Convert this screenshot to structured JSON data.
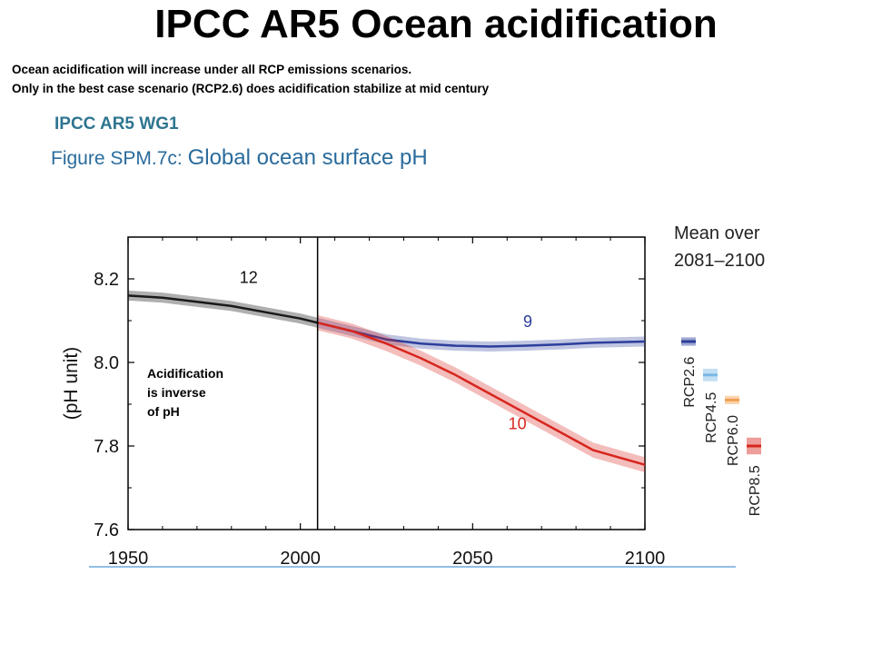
{
  "slide": {
    "title": "IPCC AR5 Ocean acidification",
    "subtitle_lines": [
      "Ocean acidification will increase under all RCP emissions scenarios.",
      "Only in the best case scenario (RCP2.6) does acidification stabilize at mid century"
    ],
    "source_label": "IPCC AR5 WG1",
    "figure_caption_prefix": "Figure SPM.7c: ",
    "figure_caption_title": "Global ocean surface pH"
  },
  "annotation_lines": [
    "Acidification",
    "is inverse",
    "of pH"
  ],
  "colors": {
    "historical": "#1a1a1a",
    "rcp26": "#2c3e9c",
    "rcp45": "#7ab8e6",
    "rcp60": "#f0a050",
    "rcp85": "#d7261e",
    "frame": "#000000",
    "baseline": "#6fa8dc"
  },
  "chart_data": {
    "type": "line",
    "title": "Global ocean surface pH",
    "xlabel": "",
    "ylabel": "(pH unit)",
    "xlim": [
      1950,
      2100
    ],
    "ylim": [
      7.6,
      8.3
    ],
    "xticks": [
      1950,
      2000,
      2050,
      2100
    ],
    "yticks": [
      7.6,
      7.8,
      8.0,
      8.2
    ],
    "ytick_labels": [
      "7.6",
      "7.8",
      "8.0",
      "8.2"
    ],
    "divider_year": 2005,
    "series": [
      {
        "key": "historical",
        "x": [
          1950,
          1960,
          1970,
          1980,
          1990,
          2000,
          2005
        ],
        "y": [
          8.16,
          8.155,
          8.145,
          8.135,
          8.12,
          8.105,
          8.095
        ],
        "band": 0.012,
        "count_label": "12",
        "count_label_at": [
          1985,
          8.19
        ]
      },
      {
        "key": "rcp26",
        "x": [
          2005,
          2015,
          2025,
          2035,
          2045,
          2055,
          2065,
          2075,
          2085,
          2100
        ],
        "y": [
          8.095,
          8.075,
          8.055,
          8.045,
          8.04,
          8.038,
          8.04,
          8.043,
          8.047,
          8.05
        ],
        "band": 0.012,
        "count_label": "9",
        "count_label_at": [
          2066,
          8.085
        ]
      },
      {
        "key": "rcp85",
        "x": [
          2005,
          2015,
          2025,
          2035,
          2045,
          2055,
          2065,
          2075,
          2085,
          2100
        ],
        "y": [
          8.095,
          8.075,
          8.045,
          8.01,
          7.97,
          7.925,
          7.88,
          7.835,
          7.79,
          7.755
        ],
        "band": 0.018,
        "count_label": "10",
        "count_label_at": [
          2063,
          7.84
        ]
      }
    ],
    "legend": {
      "title_lines": [
        "Mean over",
        "2081–2100"
      ],
      "placement": "right",
      "items": [
        {
          "label": "RCP2.6",
          "color": "#2c3e9c",
          "value": 8.05,
          "range": [
            8.04,
            8.06
          ]
        },
        {
          "label": "RCP4.5",
          "color": "#7ab8e6",
          "value": 7.97,
          "range": [
            7.955,
            7.985
          ]
        },
        {
          "label": "RCP6.0",
          "color": "#f0a050",
          "value": 7.91,
          "range": [
            7.9,
            7.92
          ]
        },
        {
          "label": "RCP8.5",
          "color": "#d7261e",
          "value": 7.8,
          "range": [
            7.78,
            7.82
          ]
        }
      ]
    }
  }
}
